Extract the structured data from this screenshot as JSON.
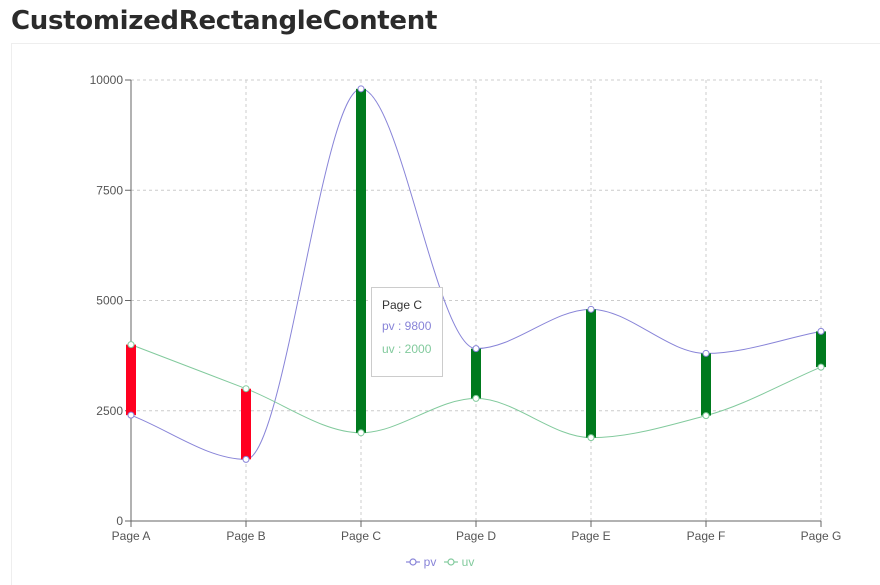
{
  "header": {
    "title": "CustomizedRectangleContent"
  },
  "colors": {
    "pv": "#8884d8",
    "uv": "#82ca9d",
    "bar_positive": "#007a1e",
    "bar_negative": "#ff0020",
    "grid": "#cccccc",
    "axis": "#666666"
  },
  "chart_data": {
    "type": "line",
    "categories": [
      "Page A",
      "Page B",
      "Page C",
      "Page D",
      "Page E",
      "Page F",
      "Page G"
    ],
    "series": [
      {
        "name": "pv",
        "values": [
          2400,
          1398,
          9800,
          3908,
          4800,
          3800,
          4300
        ]
      },
      {
        "name": "uv",
        "values": [
          4000,
          3000,
          2000,
          2780,
          1890,
          2390,
          3490
        ]
      }
    ],
    "range_bars": "vertical bar between uv and pv for each category; green when pv > uv, red when pv < uv",
    "yticks": [
      0,
      2500,
      5000,
      7500,
      10000
    ],
    "ylim": [
      0,
      10000
    ],
    "grid": true,
    "legend": "bottom-center",
    "tooltip": {
      "title": "Page C",
      "items": [
        {
          "label": "pv : 9800"
        },
        {
          "label": "uv : 2000"
        }
      ]
    }
  }
}
